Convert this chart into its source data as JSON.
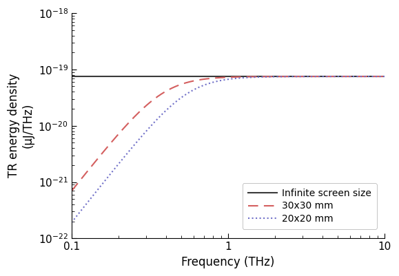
{
  "title": "",
  "xlabel": "Frequency (THz)",
  "ylabel": "TR energy density\n(μJ/THz)",
  "xlim": [
    0.1,
    10
  ],
  "ylim": [
    1e-22,
    1e-18
  ],
  "infinite_value": 7.5e-20,
  "line_color": "#3a3a3a",
  "dashed_color": "#d45f5f",
  "dotted_color": "#7070c8",
  "legend_labels": [
    "Infinite screen size",
    "30x30 mm",
    "20x20 mm"
  ],
  "freq_min": 0.1,
  "freq_max": 10,
  "num_points": 1000,
  "cutoff_30x30": 0.38,
  "cutoff_20x20": 0.55,
  "slope_30x30": 3.5,
  "slope_20x20": 3.5,
  "font_size": 12,
  "tick_font_size": 11,
  "legend_font_size": 10
}
